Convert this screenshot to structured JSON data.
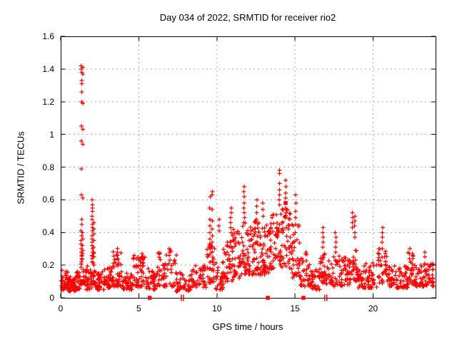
{
  "chart_data": {
    "type": "scatter",
    "title": "Day 034 of 2022, SRMTID for receiver rio2",
    "xlabel": "GPS time / hours",
    "ylabel": "SRMTID / TECUs",
    "xlim": [
      0,
      24
    ],
    "ylim": [
      0,
      1.6
    ],
    "xtick_values": [
      0,
      5,
      10,
      15,
      20
    ],
    "xtick_labels": [
      "0",
      "5",
      "10",
      "15",
      "20"
    ],
    "ytick_values": [
      0,
      0.2,
      0.4,
      0.6,
      0.8,
      1.0,
      1.2,
      1.4,
      1.6
    ],
    "ytick_labels": [
      "0",
      "0.2",
      "0.4",
      "0.6",
      "0.8",
      "1",
      "1.2",
      "1.4",
      "1.6"
    ],
    "grid": "dashed, both axes at major ticks",
    "legend": "none",
    "marker": "plus",
    "colors": {
      "marker": "#ff0000",
      "grid": "#ababab",
      "border": "#000000",
      "background": "#ffffff",
      "text": "#000000"
    },
    "series": {
      "name": "SRMTID",
      "seed": 20220134,
      "description": "Dense 30-s scatter: baseline 0.05-0.2 TECU with wave activity 10-15h (0.15-0.5) and spike columns; read as bins [x_start,x_end,count,y_min,y_max,low_bias_exponent] plus explicit outlier columns.",
      "bins": [
        [
          0.03,
          0.5,
          45,
          0.05,
          0.17,
          1.6
        ],
        [
          0.5,
          1.0,
          45,
          0.04,
          0.13,
          1.6
        ],
        [
          1.0,
          1.3,
          26,
          0.05,
          0.16,
          1.6
        ],
        [
          1.3,
          1.5,
          16,
          0.08,
          0.3,
          1.4
        ],
        [
          1.5,
          2.0,
          40,
          0.05,
          0.2,
          1.8
        ],
        [
          2.0,
          2.2,
          14,
          0.08,
          0.28,
          1.4
        ],
        [
          2.2,
          2.8,
          40,
          0.05,
          0.16,
          1.6
        ],
        [
          2.8,
          3.3,
          35,
          0.06,
          0.19,
          1.6
        ],
        [
          3.3,
          4.0,
          50,
          0.07,
          0.3,
          1.9
        ],
        [
          4.0,
          4.6,
          42,
          0.05,
          0.16,
          1.6
        ],
        [
          4.6,
          5.4,
          50,
          0.07,
          0.26,
          1.9
        ],
        [
          5.4,
          6.2,
          45,
          0.05,
          0.18,
          1.7
        ],
        [
          6.2,
          7.4,
          60,
          0.07,
          0.3,
          1.9
        ],
        [
          7.4,
          8.3,
          42,
          0.04,
          0.16,
          1.7
        ],
        [
          8.3,
          9.3,
          48,
          0.06,
          0.21,
          1.7
        ],
        [
          9.3,
          9.9,
          35,
          0.09,
          0.35,
          1.5
        ],
        [
          9.9,
          10.4,
          30,
          0.05,
          0.22,
          1.7
        ],
        [
          10.4,
          11.0,
          40,
          0.1,
          0.35,
          1.4
        ],
        [
          11.0,
          11.6,
          45,
          0.12,
          0.42,
          1.4
        ],
        [
          11.6,
          12.1,
          42,
          0.14,
          0.46,
          1.3
        ],
        [
          12.1,
          12.8,
          55,
          0.14,
          0.48,
          1.3
        ],
        [
          12.8,
          13.4,
          50,
          0.14,
          0.45,
          1.3
        ],
        [
          13.4,
          14.1,
          52,
          0.17,
          0.52,
          1.3
        ],
        [
          14.1,
          14.7,
          45,
          0.18,
          0.55,
          1.3
        ],
        [
          14.7,
          15.3,
          40,
          0.12,
          0.45,
          1.4
        ],
        [
          15.3,
          16.0,
          38,
          0.07,
          0.28,
          1.7
        ],
        [
          16.0,
          16.6,
          35,
          0.05,
          0.18,
          1.7
        ],
        [
          16.6,
          17.2,
          40,
          0.08,
          0.28,
          1.6
        ],
        [
          17.2,
          18.1,
          45,
          0.07,
          0.26,
          1.7
        ],
        [
          18.1,
          18.7,
          40,
          0.08,
          0.26,
          1.6
        ],
        [
          18.7,
          19.0,
          22,
          0.1,
          0.3,
          1.5
        ],
        [
          19.0,
          20.3,
          70,
          0.06,
          0.22,
          1.7
        ],
        [
          20.3,
          20.9,
          35,
          0.09,
          0.3,
          1.6
        ],
        [
          20.9,
          22.2,
          75,
          0.06,
          0.2,
          1.7
        ],
        [
          22.2,
          22.6,
          25,
          0.08,
          0.28,
          1.6
        ],
        [
          22.6,
          23.87,
          78,
          0.07,
          0.21,
          1.6
        ]
      ],
      "outlier_columns": [
        {
          "x": 1.33,
          "ys": [
            1.42,
            1.4,
            1.38,
            1.33,
            1.31,
            1.26,
            1.2,
            1.05,
            0.96,
            0.79,
            0.63,
            0.48,
            0.45,
            0.41,
            0.38,
            0.35,
            0.33,
            0.3,
            0.28,
            0.26,
            0.24,
            0.22
          ]
        },
        {
          "x": 1.41,
          "ys": [
            1.41,
            1.37,
            1.19,
            1.03,
            0.94,
            0.61,
            0.4,
            0.36,
            0.32,
            0.29,
            0.27
          ]
        },
        {
          "x": 2.03,
          "ys": [
            0.6,
            0.57,
            0.55,
            0.53,
            0.5,
            0.48,
            0.45,
            0.43,
            0.41,
            0.38,
            0.36,
            0.34,
            0.32,
            0.3,
            0.28,
            0.26,
            0.24,
            0.22
          ]
        },
        {
          "x": 2.12,
          "ys": [
            0.46,
            0.42,
            0.39,
            0.35,
            0.31,
            0.28,
            0.25
          ]
        },
        {
          "x": 3.62,
          "ys": [
            0.3,
            0.28,
            0.26,
            0.24
          ]
        },
        {
          "x": 5.22,
          "ys": [
            0.27,
            0.25
          ]
        },
        {
          "x": 6.95,
          "ys": [
            0.3,
            0.28,
            0.26
          ]
        },
        {
          "x": 9.55,
          "ys": [
            0.62,
            0.55,
            0.48,
            0.44,
            0.4,
            0.36,
            0.33,
            0.3
          ]
        },
        {
          "x": 9.7,
          "ys": [
            0.65,
            0.63,
            0.54,
            0.47,
            0.42,
            0.38,
            0.34,
            0.31,
            0.28
          ]
        },
        {
          "x": 10.15,
          "ys": [
            0.48,
            0.44,
            0.41
          ]
        },
        {
          "x": 10.9,
          "ys": [
            0.55,
            0.52,
            0.49,
            0.46,
            0.43,
            0.4
          ]
        },
        {
          "x": 11.75,
          "ys": [
            0.68,
            0.65,
            0.62,
            0.58,
            0.55,
            0.52,
            0.49,
            0.46
          ]
        },
        {
          "x": 12.55,
          "ys": [
            0.6,
            0.56,
            0.52,
            0.48
          ]
        },
        {
          "x": 12.95,
          "ys": [
            0.58,
            0.54,
            0.5
          ]
        },
        {
          "x": 14.0,
          "ys": [
            0.78,
            0.76,
            0.7,
            0.66,
            0.63,
            0.6,
            0.57
          ]
        },
        {
          "x": 14.4,
          "ys": [
            0.72,
            0.68,
            0.64,
            0.61,
            0.55,
            0.52,
            0.49
          ]
        },
        {
          "x": 15.05,
          "ys": [
            0.63,
            0.58,
            0.53,
            0.49,
            0.45
          ]
        },
        {
          "x": 16.8,
          "ys": [
            0.43,
            0.4,
            0.37,
            0.34,
            0.31
          ]
        },
        {
          "x": 17.6,
          "ys": [
            0.4,
            0.37,
            0.34,
            0.31,
            0.28
          ]
        },
        {
          "x": 18.68,
          "ys": [
            0.52,
            0.49,
            0.46,
            0.43
          ]
        },
        {
          "x": 18.82,
          "ys": [
            0.5,
            0.47,
            0.44,
            0.4,
            0.37
          ]
        },
        {
          "x": 20.6,
          "ys": [
            0.43,
            0.4,
            0.37,
            0.34,
            0.3
          ]
        },
        {
          "x": 22.35,
          "ys": [
            0.3,
            0.27,
            0.24
          ]
        },
        {
          "x": 23.3,
          "ys": [
            0.28,
            0.25
          ]
        }
      ],
      "square_points": [
        [
          5.26,
          0.24
        ],
        [
          14.4,
          0.58
        ]
      ],
      "axis_squares_x": [
        5.7,
        13.26,
        15.54
      ],
      "axis_plus_pairs_x": [
        [
          7.72,
          7.86
        ],
        [
          16.9,
          17.04
        ]
      ]
    }
  }
}
